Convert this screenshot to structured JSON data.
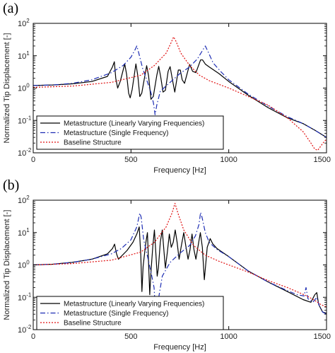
{
  "chart_data": [
    {
      "type": "line",
      "panel_label": "(a)",
      "xlabel": "Frequency [Hz]",
      "ylabel": "Normalized Tip Displacement [-]",
      "xlim": [
        0,
        1500
      ],
      "ylim": [
        0.01,
        100
      ],
      "yscale": "log",
      "x_ticks": [
        0,
        500,
        1000,
        1500
      ],
      "y_ticks": [
        0.01,
        0.1,
        1,
        10,
        100
      ],
      "grid": false,
      "legend_position": "bottom-left",
      "series": [
        {
          "name": "Metastructure (Linearly Varying Frequencies)",
          "color": "#000000",
          "dash": "solid",
          "points": [
            [
              0,
              1.2
            ],
            [
              100,
              1.25
            ],
            [
              200,
              1.35
            ],
            [
              300,
              1.6
            ],
            [
              380,
              2.3
            ],
            [
              405,
              4.5
            ],
            [
              415,
              6.5
            ],
            [
              422,
              2.0
            ],
            [
              432,
              1.0
            ],
            [
              445,
              1.6
            ],
            [
              468,
              5.6
            ],
            [
              478,
              2.6
            ],
            [
              488,
              0.7
            ],
            [
              496,
              0.5
            ],
            [
              506,
              0.9
            ],
            [
              525,
              5.6
            ],
            [
              535,
              2.4
            ],
            [
              545,
              0.55
            ],
            [
              555,
              0.7
            ],
            [
              580,
              4.9
            ],
            [
              590,
              2.4
            ],
            [
              602,
              0.45
            ],
            [
              614,
              0.55
            ],
            [
              632,
              2.5
            ],
            [
              642,
              4.7
            ],
            [
              652,
              2.2
            ],
            [
              664,
              0.75
            ],
            [
              676,
              0.85
            ],
            [
              690,
              3.3
            ],
            [
              700,
              4.6
            ],
            [
              712,
              1.8
            ],
            [
              724,
              0.75
            ],
            [
              742,
              3.6
            ],
            [
              752,
              3.6
            ],
            [
              762,
              1.8
            ],
            [
              774,
              1.4
            ],
            [
              800,
              5.4
            ],
            [
              815,
              3.3
            ],
            [
              832,
              3.0
            ],
            [
              856,
              7.4
            ],
            [
              866,
              7.4
            ],
            [
              880,
              5.5
            ],
            [
              900,
              4.5
            ],
            [
              950,
              2.8
            ],
            [
              1000,
              1.6
            ],
            [
              1100,
              0.6
            ],
            [
              1200,
              0.25
            ],
            [
              1300,
              0.12
            ],
            [
              1380,
              0.08
            ],
            [
              1440,
              0.05
            ],
            [
              1500,
              0.03
            ]
          ]
        },
        {
          "name": "Metastructure (Single Frequency)",
          "color": "#1c2cb3",
          "dash": "dashdot",
          "points": [
            [
              0,
              1.2
            ],
            [
              100,
              1.25
            ],
            [
              200,
              1.4
            ],
            [
              300,
              1.8
            ],
            [
              400,
              3.0
            ],
            [
              460,
              5.0
            ],
            [
              500,
              9.0
            ],
            [
              520,
              15
            ],
            [
              530,
              20
            ],
            [
              540,
              12
            ],
            [
              560,
              4.0
            ],
            [
              580,
              1.8
            ],
            [
              600,
              0.8
            ],
            [
              615,
              0.35
            ],
            [
              623,
              0.15
            ],
            [
              632,
              0.3
            ],
            [
              650,
              0.8
            ],
            [
              700,
              1.5
            ],
            [
              750,
              2.8
            ],
            [
              800,
              4.5
            ],
            [
              840,
              8.0
            ],
            [
              870,
              16
            ],
            [
              880,
              20
            ],
            [
              895,
              13
            ],
            [
              920,
              6.0
            ],
            [
              960,
              3.2
            ],
            [
              1000,
              1.8
            ],
            [
              1100,
              0.65
            ],
            [
              1200,
              0.28
            ],
            [
              1300,
              0.13
            ],
            [
              1380,
              0.08
            ],
            [
              1440,
              0.05
            ],
            [
              1500,
              0.03
            ]
          ]
        },
        {
          "name": "Baseline Structure",
          "color": "#e01010",
          "dash": "dotted",
          "points": [
            [
              0,
              1.05
            ],
            [
              200,
              1.15
            ],
            [
              400,
              1.5
            ],
            [
              550,
              2.5
            ],
            [
              620,
              5.0
            ],
            [
              680,
              12
            ],
            [
              705,
              25
            ],
            [
              718,
              38
            ],
            [
              730,
              28
            ],
            [
              755,
              12
            ],
            [
              800,
              5.0
            ],
            [
              850,
              2.5
            ],
            [
              900,
              1.7
            ],
            [
              1000,
              1.0
            ],
            [
              1100,
              0.55
            ],
            [
              1200,
              0.3
            ],
            [
              1300,
              0.12
            ],
            [
              1380,
              0.045
            ],
            [
              1420,
              0.02
            ],
            [
              1440,
              0.013
            ],
            [
              1455,
              0.012
            ],
            [
              1470,
              0.016
            ],
            [
              1490,
              0.023
            ],
            [
              1500,
              0.026
            ]
          ]
        }
      ]
    },
    {
      "type": "line",
      "panel_label": "(b)",
      "xlabel": "Frequency [Hz]",
      "ylabel": "Normalized Tip Displacement [-]",
      "xlim": [
        0,
        1500
      ],
      "ylim": [
        0.01,
        100
      ],
      "yscale": "log",
      "x_ticks": [
        0,
        500,
        1000,
        1500
      ],
      "y_ticks": [
        0.01,
        0.1,
        1,
        10,
        100
      ],
      "grid": false,
      "legend_position": "bottom-left",
      "series": [
        {
          "name": "Metastructure (Linearly Varying Frequencies)",
          "color": "#000000",
          "dash": "solid",
          "points": [
            [
              0,
              1.0
            ],
            [
              100,
              1.05
            ],
            [
              200,
              1.2
            ],
            [
              300,
              1.5
            ],
            [
              380,
              2.2
            ],
            [
              405,
              3.2
            ],
            [
              416,
              4.4
            ],
            [
              426,
              2.2
            ],
            [
              436,
              1.5
            ],
            [
              480,
              2.8
            ],
            [
              510,
              5.0
            ],
            [
              530,
              9.0
            ],
            [
              542,
              15
            ],
            [
              550,
              2.0
            ],
            [
              556,
              0.15
            ],
            [
              562,
              0.9
            ],
            [
              575,
              4.5
            ],
            [
              584,
              10
            ],
            [
              590,
              1.2
            ],
            [
              596,
              0.12
            ],
            [
              602,
              0.6
            ],
            [
              612,
              4.0
            ],
            [
              620,
              12
            ],
            [
              628,
              2.0
            ],
            [
              634,
              0.45
            ],
            [
              640,
              0.8
            ],
            [
              650,
              5.0
            ],
            [
              660,
              12
            ],
            [
              668,
              3.0
            ],
            [
              676,
              0.8
            ],
            [
              686,
              2.5
            ],
            [
              696,
              9.0
            ],
            [
              706,
              3.5
            ],
            [
              716,
              5.0
            ],
            [
              726,
              12
            ],
            [
              736,
              5.0
            ],
            [
              746,
              1.5
            ],
            [
              756,
              3.5
            ],
            [
              770,
              10
            ],
            [
              780,
              4.0
            ],
            [
              792,
              1.5
            ],
            [
              802,
              3.0
            ],
            [
              812,
              9.0
            ],
            [
              822,
              3.0
            ],
            [
              832,
              1.5
            ],
            [
              845,
              4.5
            ],
            [
              855,
              10
            ],
            [
              865,
              3.5
            ],
            [
              875,
              0.35
            ],
            [
              882,
              1.0
            ],
            [
              890,
              3.5
            ],
            [
              905,
              6.5
            ],
            [
              918,
              4.5
            ],
            [
              940,
              3.2
            ],
            [
              1000,
              1.8
            ],
            [
              1100,
              0.65
            ],
            [
              1200,
              0.3
            ],
            [
              1300,
              0.15
            ],
            [
              1380,
              0.085
            ],
            [
              1420,
              0.07
            ],
            [
              1440,
              0.12
            ],
            [
              1450,
              0.14
            ],
            [
              1460,
              0.06
            ],
            [
              1480,
              0.035
            ],
            [
              1500,
              0.032
            ]
          ]
        },
        {
          "name": "Metastructure (Single Frequency)",
          "color": "#1c2cb3",
          "dash": "dashdot",
          "points": [
            [
              0,
              1.0
            ],
            [
              100,
              1.05
            ],
            [
              200,
              1.2
            ],
            [
              300,
              1.5
            ],
            [
              400,
              2.2
            ],
            [
              450,
              3.2
            ],
            [
              500,
              6.0
            ],
            [
              530,
              15
            ],
            [
              545,
              40
            ],
            [
              552,
              30
            ],
            [
              565,
              6.0
            ],
            [
              585,
              1.8
            ],
            [
              605,
              0.5
            ],
            [
              618,
              0.2
            ],
            [
              630,
              0.012
            ],
            [
              642,
              0.1
            ],
            [
              660,
              0.45
            ],
            [
              700,
              1.2
            ],
            [
              750,
              2.3
            ],
            [
              800,
              4.0
            ],
            [
              830,
              8.0
            ],
            [
              848,
              18
            ],
            [
              856,
              42
            ],
            [
              863,
              30
            ],
            [
              880,
              10
            ],
            [
              900,
              5.0
            ],
            [
              940,
              3.0
            ],
            [
              1000,
              1.8
            ],
            [
              1100,
              0.65
            ],
            [
              1200,
              0.3
            ],
            [
              1300,
              0.16
            ],
            [
              1350,
              0.12
            ],
            [
              1385,
              0.11
            ],
            [
              1395,
              0.2
            ],
            [
              1405,
              0.09
            ],
            [
              1430,
              0.07
            ],
            [
              1450,
              0.1
            ],
            [
              1465,
              0.05
            ],
            [
              1480,
              0.035
            ],
            [
              1500,
              0.03
            ]
          ]
        },
        {
          "name": "Baseline Structure",
          "color": "#e01010",
          "dash": "dotted",
          "points": [
            [
              0,
              1.0
            ],
            [
              200,
              1.1
            ],
            [
              400,
              1.4
            ],
            [
              550,
              2.5
            ],
            [
              620,
              5.0
            ],
            [
              680,
              15
            ],
            [
              710,
              40
            ],
            [
              725,
              80
            ],
            [
              740,
              40
            ],
            [
              770,
              12
            ],
            [
              820,
              4.0
            ],
            [
              880,
              2.0
            ],
            [
              950,
              1.3
            ],
            [
              1000,
              1.0
            ],
            [
              1100,
              0.6
            ],
            [
              1200,
              0.33
            ],
            [
              1300,
              0.2
            ],
            [
              1400,
              0.11
            ],
            [
              1440,
              0.08
            ],
            [
              1470,
              0.06
            ],
            [
              1500,
              0.05
            ]
          ]
        }
      ]
    }
  ]
}
